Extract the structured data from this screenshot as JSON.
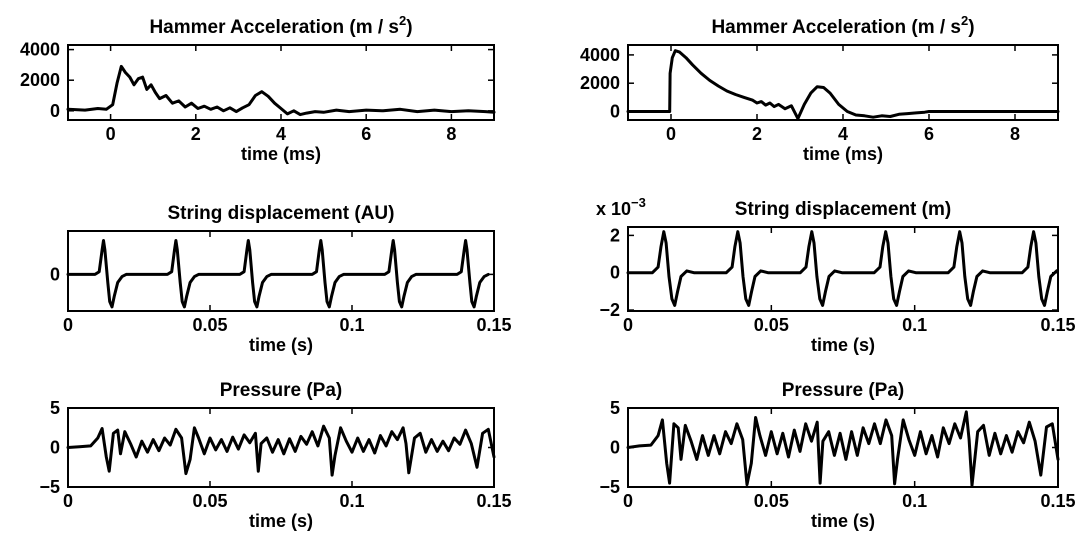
{
  "chart_data": [
    {
      "type": "line",
      "title": "Hammer Acceleration (m / s",
      "title_sup": "2",
      "title_end": ")",
      "xlabel": "time (ms)",
      "xlim": [
        -1,
        9
      ],
      "ylim": [
        -600,
        4300
      ],
      "xticks": [
        0,
        2,
        4,
        6,
        8
      ],
      "xtick_labels": [
        "0",
        "2",
        "4",
        "6",
        "8"
      ],
      "yticks": [
        0,
        2000,
        4000
      ],
      "ytick_labels": [
        "0",
        "2000",
        "4000"
      ],
      "series": [
        {
          "x": [
            -1,
            -0.6,
            -0.3,
            -0.1,
            0.05,
            0.15,
            0.25,
            0.35,
            0.45,
            0.55,
            0.65,
            0.75,
            0.85,
            0.95,
            1.05,
            1.15,
            1.3,
            1.45,
            1.6,
            1.75,
            1.9,
            2.05,
            2.2,
            2.35,
            2.5,
            2.65,
            2.8,
            2.95,
            3.1,
            3.25,
            3.4,
            3.55,
            3.7,
            3.85,
            4.0,
            4.15,
            4.3,
            4.45,
            4.6,
            4.8,
            5.0,
            5.3,
            5.6,
            6.0,
            6.4,
            6.8,
            7.2,
            7.6,
            8.0,
            8.4,
            8.8,
            9.0
          ],
          "y": [
            100,
            50,
            150,
            100,
            400,
            1800,
            2900,
            2500,
            2200,
            1700,
            2100,
            2200,
            1400,
            1700,
            1200,
            800,
            1000,
            500,
            650,
            250,
            500,
            150,
            300,
            100,
            250,
            0,
            200,
            -50,
            200,
            400,
            1000,
            1250,
            950,
            500,
            150,
            -200,
            0,
            -250,
            -150,
            -50,
            -100,
            50,
            -50,
            50,
            0,
            100,
            -50,
            50,
            -50,
            0,
            -50,
            -100
          ]
        }
      ]
    },
    {
      "type": "line",
      "title": "Hammer Acceleration (m / s",
      "title_sup": "2",
      "title_end": ")",
      "xlabel": "time (ms)",
      "xlim": [
        -1,
        9
      ],
      "ylim": [
        -600,
        4700
      ],
      "xticks": [
        0,
        2,
        4,
        6,
        8
      ],
      "xtick_labels": [
        "0",
        "2",
        "4",
        "6",
        "8"
      ],
      "yticks": [
        0,
        2000,
        4000
      ],
      "ytick_labels": [
        "0",
        "2000",
        "4000"
      ],
      "series": [
        {
          "x": [
            -1,
            -0.03,
            -0.02,
            0.03,
            0.1,
            0.2,
            0.35,
            0.5,
            0.7,
            0.9,
            1.1,
            1.3,
            1.5,
            1.7,
            1.9,
            2.0,
            2.1,
            2.2,
            2.3,
            2.4,
            2.5,
            2.65,
            2.8,
            2.95,
            3.1,
            3.25,
            3.4,
            3.55,
            3.7,
            3.9,
            4.1,
            4.3,
            4.5,
            4.7,
            4.9,
            5.1,
            5.3,
            5.5,
            5.7,
            5.9,
            6.0,
            9.0
          ],
          "y": [
            0,
            0,
            2700,
            3800,
            4300,
            4200,
            3800,
            3300,
            2700,
            2200,
            1800,
            1450,
            1200,
            1000,
            800,
            600,
            700,
            450,
            600,
            350,
            500,
            200,
            400,
            -500,
            500,
            1300,
            1750,
            1700,
            1300,
            500,
            0,
            -250,
            -300,
            -400,
            -300,
            -350,
            -200,
            -150,
            -100,
            -50,
            0,
            0
          ]
        }
      ]
    },
    {
      "type": "line",
      "title": "String displacement (AU)",
      "xlabel": "time (s)",
      "xlim": [
        0,
        0.15
      ],
      "ylim": [
        -1.35,
        1.6
      ],
      "xticks": [
        0,
        0.05,
        0.1,
        0.15
      ],
      "xtick_labels": [
        "0",
        "0.05",
        "0.1",
        "0.15"
      ],
      "yticks": [
        0
      ],
      "ytick_labels": [
        "0"
      ],
      "period": 0.0255,
      "first_peak": 0.0125,
      "shape": {
        "dt": [
          -0.012,
          -0.003,
          -0.0015,
          -0.0005,
          0.0,
          0.0005,
          0.0015,
          0.0022,
          0.003,
          0.0038,
          0.005,
          0.0065,
          0.008,
          0.0105,
          0.013
        ],
        "v": [
          0.0,
          0.0,
          0.1,
          0.9,
          1.25,
          0.9,
          -0.3,
          -1.0,
          -1.2,
          -0.8,
          -0.3,
          -0.08,
          0.0,
          0.0,
          0.0
        ]
      }
    },
    {
      "type": "line",
      "title": "String displacement (m)",
      "multiplier": "x 10",
      "multiplier_exp": "−3",
      "xlabel": "time (s)",
      "xlim": [
        0,
        0.15
      ],
      "ylim": [
        -2.05,
        2.45
      ],
      "xticks": [
        0,
        0.05,
        0.1,
        0.15
      ],
      "xtick_labels": [
        "0",
        "0.05",
        "0.1",
        "0.15"
      ],
      "yticks": [
        -2,
        0,
        2
      ],
      "ytick_labels": [
        "−2",
        "0",
        "2"
      ],
      "period": 0.0258,
      "first_peak": 0.0125,
      "shape": {
        "dt": [
          -0.012,
          -0.004,
          -0.002,
          -0.001,
          0.0,
          0.0008,
          0.0018,
          0.0028,
          0.0038,
          0.0048,
          0.006,
          0.008,
          0.0105,
          0.013
        ],
        "v": [
          0.0,
          0.0,
          0.3,
          1.4,
          2.2,
          1.6,
          -0.2,
          -1.4,
          -1.75,
          -1.0,
          -0.2,
          0.1,
          0.0,
          0.0
        ]
      }
    },
    {
      "type": "line",
      "title": "Pressure (Pa)",
      "xlabel": "time (s)",
      "xlim": [
        0,
        0.15
      ],
      "ylim": [
        -5,
        5
      ],
      "xticks": [
        0,
        0.05,
        0.1,
        0.15
      ],
      "xtick_labels": [
        "0",
        "0.05",
        "0.1",
        "0.15"
      ],
      "yticks": [
        -5,
        0,
        5
      ],
      "ytick_labels": [
        "−5",
        "0",
        "5"
      ],
      "series": [
        {
          "x": [
            0,
            0.004,
            0.008,
            0.0105,
            0.012,
            0.0135,
            0.0145,
            0.016,
            0.0175,
            0.0185,
            0.02,
            0.022,
            0.024,
            0.026,
            0.028,
            0.03,
            0.032,
            0.034,
            0.036,
            0.038,
            0.04,
            0.0415,
            0.043,
            0.0445,
            0.046,
            0.048,
            0.05,
            0.052,
            0.054,
            0.056,
            0.058,
            0.06,
            0.062,
            0.064,
            0.066,
            0.067,
            0.068,
            0.07,
            0.072,
            0.074,
            0.076,
            0.078,
            0.08,
            0.082,
            0.084,
            0.086,
            0.088,
            0.09,
            0.092,
            0.093,
            0.094,
            0.096,
            0.098,
            0.1,
            0.102,
            0.104,
            0.106,
            0.108,
            0.11,
            0.112,
            0.114,
            0.116,
            0.118,
            0.119,
            0.12,
            0.122,
            0.124,
            0.126,
            0.128,
            0.13,
            0.132,
            0.134,
            0.136,
            0.138,
            0.14,
            0.142,
            0.144,
            0.146,
            0.148,
            0.15
          ],
          "y": [
            0,
            0.1,
            0.2,
            1.2,
            2.4,
            -1.2,
            -3.0,
            1.8,
            2.2,
            -0.8,
            2.0,
            0.5,
            -1.2,
            0.8,
            -0.6,
            1.0,
            -0.4,
            1.2,
            0.3,
            2.3,
            1.2,
            -3.3,
            -1.5,
            2.5,
            1.2,
            -0.8,
            1.2,
            -0.3,
            1.0,
            -0.5,
            1.3,
            -0.2,
            1.6,
            0.6,
            1.8,
            -3.0,
            0.5,
            1.2,
            -0.6,
            1.0,
            -0.8,
            1.1,
            -0.5,
            1.4,
            0.4,
            2.0,
            0.2,
            2.7,
            1.2,
            -3.5,
            -1.0,
            2.5,
            0.8,
            -0.6,
            1.2,
            -0.5,
            1.0,
            -0.7,
            1.5,
            0.2,
            2.0,
            1.0,
            2.5,
            0.5,
            -3.2,
            1.2,
            1.8,
            -0.6,
            1.0,
            -0.5,
            0.8,
            -0.4,
            1.2,
            0.4,
            2.2,
            0.5,
            -2.5,
            1.8,
            2.3,
            -1.2
          ]
        }
      ]
    },
    {
      "type": "line",
      "title": "Pressure (Pa)",
      "xlabel": "time (s)",
      "xlim": [
        0,
        0.15
      ],
      "ylim": [
        -5,
        5
      ],
      "xticks": [
        0,
        0.05,
        0.1,
        0.15
      ],
      "xtick_labels": [
        "0",
        "0.05",
        "0.1",
        "0.15"
      ],
      "yticks": [
        -5,
        0,
        5
      ],
      "ytick_labels": [
        "−5",
        "0",
        "5"
      ],
      "series": [
        {
          "x": [
            0,
            0.004,
            0.008,
            0.0105,
            0.012,
            0.0135,
            0.0145,
            0.016,
            0.0175,
            0.0185,
            0.02,
            0.022,
            0.024,
            0.026,
            0.028,
            0.03,
            0.032,
            0.034,
            0.036,
            0.038,
            0.04,
            0.0415,
            0.043,
            0.0445,
            0.046,
            0.048,
            0.05,
            0.052,
            0.054,
            0.056,
            0.058,
            0.06,
            0.062,
            0.064,
            0.066,
            0.067,
            0.068,
            0.07,
            0.072,
            0.074,
            0.076,
            0.078,
            0.08,
            0.082,
            0.084,
            0.086,
            0.088,
            0.09,
            0.092,
            0.093,
            0.094,
            0.096,
            0.098,
            0.1,
            0.102,
            0.104,
            0.106,
            0.108,
            0.11,
            0.112,
            0.114,
            0.116,
            0.118,
            0.119,
            0.12,
            0.122,
            0.124,
            0.126,
            0.128,
            0.13,
            0.132,
            0.134,
            0.136,
            0.138,
            0.14,
            0.142,
            0.144,
            0.146,
            0.148,
            0.15
          ],
          "y": [
            0,
            0.2,
            0.3,
            1.5,
            3.5,
            -2.0,
            -4.5,
            3.0,
            2.5,
            -1.5,
            2.8,
            0.8,
            -1.5,
            1.5,
            -1.0,
            1.5,
            -0.8,
            2.0,
            0.5,
            3.0,
            1.0,
            -4.7,
            -2.0,
            3.8,
            1.5,
            -1.0,
            2.0,
            -0.8,
            1.8,
            -1.2,
            2.2,
            -0.5,
            3.0,
            0.8,
            3.2,
            -4.5,
            0.8,
            2.0,
            -1.0,
            1.8,
            -1.5,
            2.0,
            -1.0,
            2.5,
            0.5,
            3.0,
            0.5,
            3.5,
            1.5,
            -4.6,
            -1.5,
            3.5,
            1.0,
            -1.0,
            2.0,
            -0.8,
            1.5,
            -1.2,
            2.5,
            0.5,
            3.0,
            1.2,
            4.5,
            1.0,
            -4.8,
            2.0,
            2.8,
            -1.0,
            1.8,
            -0.8,
            1.5,
            -0.6,
            2.0,
            0.6,
            3.2,
            0.8,
            -3.5,
            2.6,
            3.0,
            -1.5
          ]
        }
      ]
    }
  ]
}
